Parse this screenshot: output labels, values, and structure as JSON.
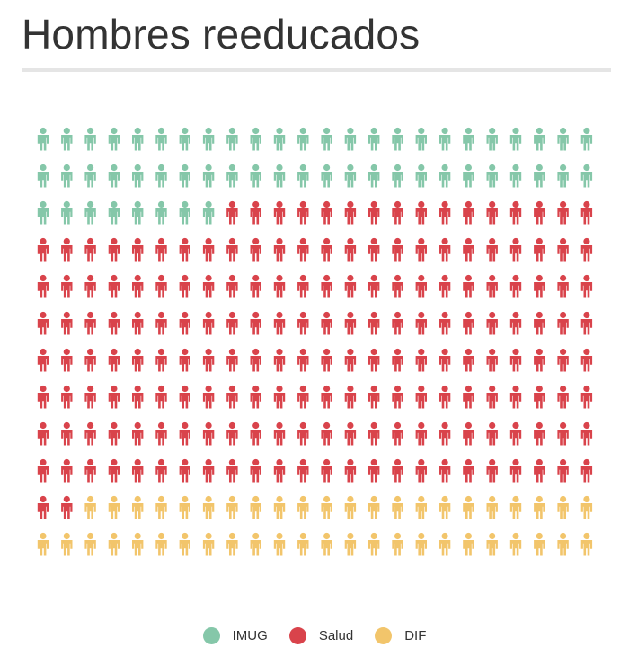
{
  "title": "Hombres reeducados",
  "chart_data": {
    "type": "waffle",
    "title": "Hombres reeducados",
    "unit": "person",
    "series": [
      {
        "name": "IMUG",
        "value": 56,
        "color": "#85c7a9"
      },
      {
        "name": "Salud",
        "value": 186,
        "color": "#d9434b"
      },
      {
        "name": "DIF",
        "value": 49,
        "color": "#f2c56b"
      }
    ],
    "total": 291,
    "grid": {
      "columns": 24,
      "rows": 12
    }
  }
}
